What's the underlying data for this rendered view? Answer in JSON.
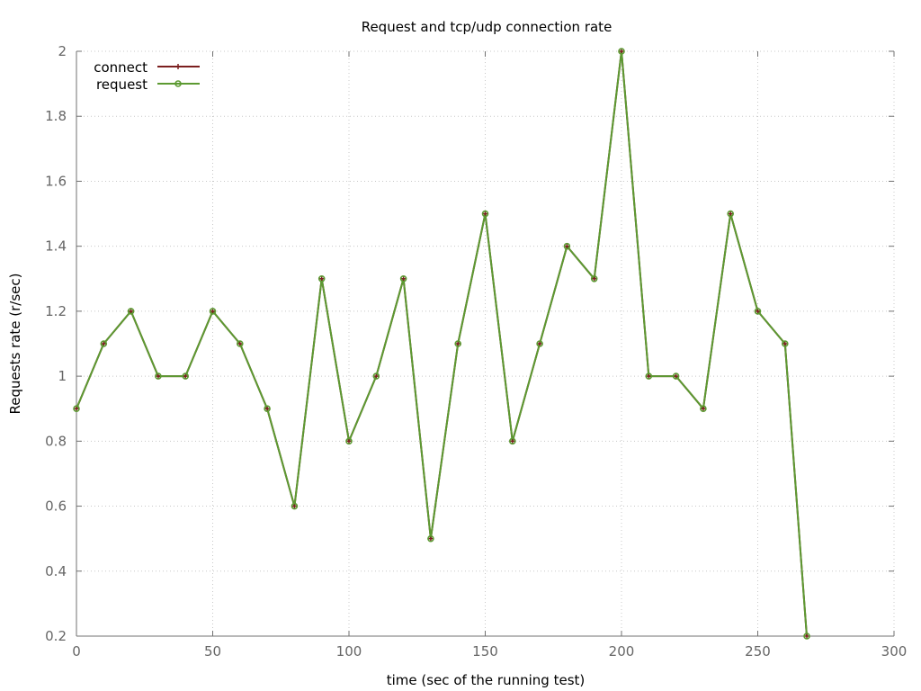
{
  "chart_data": {
    "type": "line",
    "title": "Request and tcp/udp connection rate",
    "xlabel": "time (sec of the running test)",
    "ylabel": "Requests rate (r/sec)",
    "xlim": [
      0,
      300
    ],
    "ylim": [
      0.2,
      2
    ],
    "x_ticks": [
      "0",
      "50",
      "100",
      "150",
      "200",
      "250",
      "300"
    ],
    "y_ticks": [
      "0.2",
      "0.4",
      "0.6",
      "0.8",
      "1",
      "1.2",
      "1.4",
      "1.6",
      "1.8",
      "2"
    ],
    "grid": true,
    "legend_position": "top-left",
    "series": [
      {
        "name": "connect",
        "color": "#7b1f1f",
        "marker": "plus",
        "x": [
          0,
          10,
          20,
          30,
          40,
          50,
          60,
          70,
          80,
          90,
          100,
          110,
          120,
          130,
          140,
          150,
          160,
          170,
          180,
          190,
          200,
          210,
          220,
          230,
          240,
          250,
          260,
          268
        ],
        "y": [
          0.9,
          1.1,
          1.2,
          1.0,
          1.0,
          1.2,
          1.1,
          0.9,
          0.6,
          1.3,
          0.8,
          1.0,
          1.3,
          0.5,
          1.1,
          1.5,
          0.8,
          1.1,
          1.4,
          1.3,
          2.0,
          1.0,
          1.0,
          0.9,
          1.5,
          1.2,
          1.1,
          0.2
        ]
      },
      {
        "name": "request",
        "color": "#5c9a32",
        "marker": "circle",
        "x": [
          0,
          10,
          20,
          30,
          40,
          50,
          60,
          70,
          80,
          90,
          100,
          110,
          120,
          130,
          140,
          150,
          160,
          170,
          180,
          190,
          200,
          210,
          220,
          230,
          240,
          250,
          260,
          268
        ],
        "y": [
          0.9,
          1.1,
          1.2,
          1.0,
          1.0,
          1.2,
          1.1,
          0.9,
          0.6,
          1.3,
          0.8,
          1.0,
          1.3,
          0.5,
          1.1,
          1.5,
          0.8,
          1.1,
          1.4,
          1.3,
          2.0,
          1.0,
          1.0,
          0.9,
          1.5,
          1.2,
          1.1,
          0.2
        ]
      }
    ]
  }
}
